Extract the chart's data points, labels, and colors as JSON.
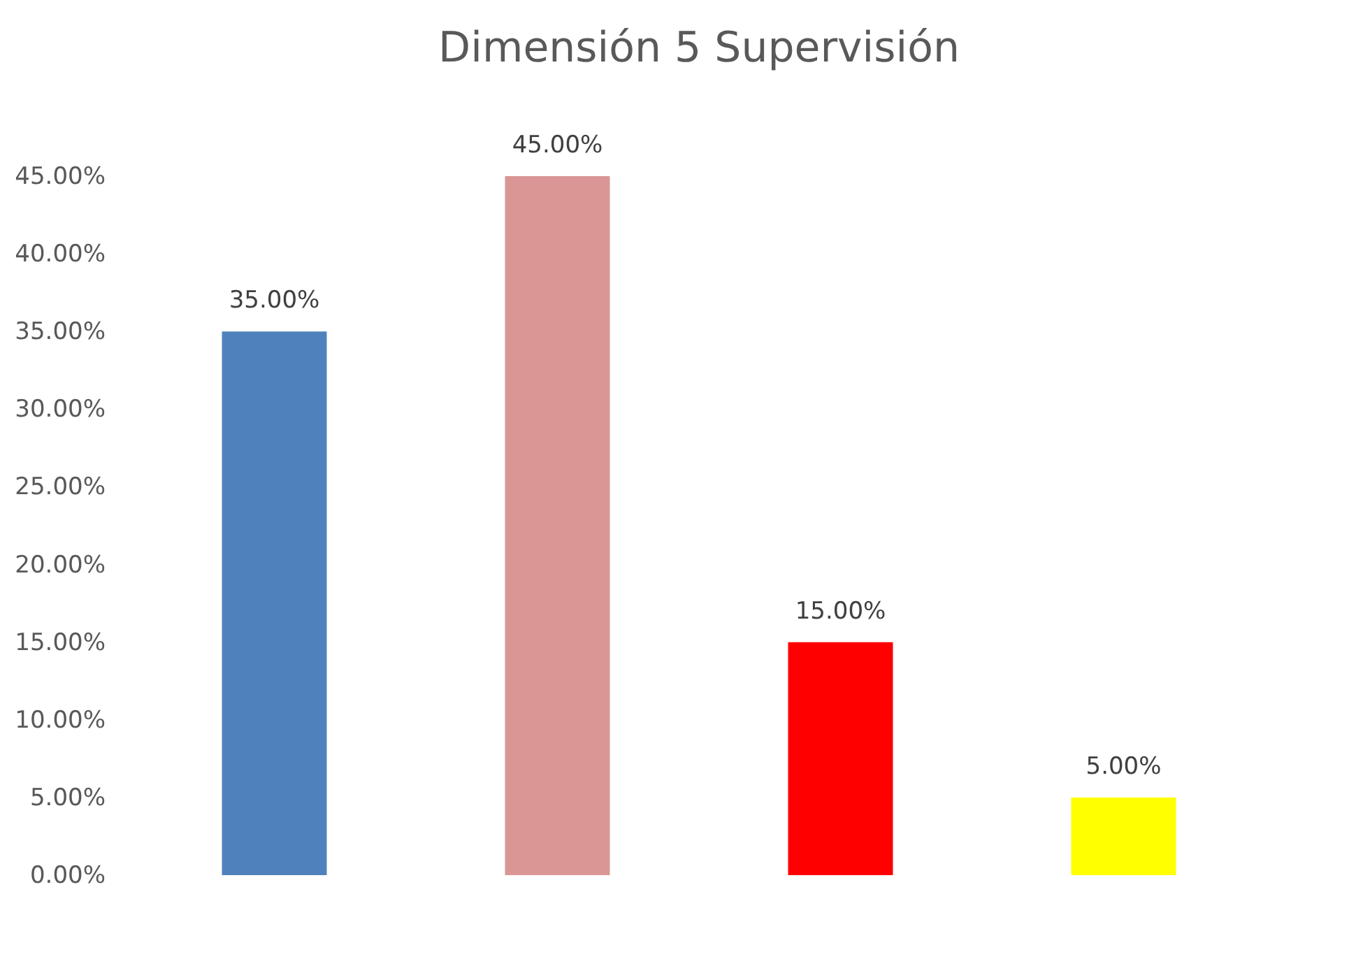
{
  "chart_data": {
    "type": "bar",
    "title": "Dimensión 5 Supervisión",
    "categories": [
      null,
      null,
      null,
      null
    ],
    "values": [
      35,
      45,
      15,
      5
    ],
    "colors": [
      "#4f81bd",
      "#d99694",
      "#ff0000",
      "#ffff00"
    ],
    "value_labels": [
      "35.00%",
      "45.00%",
      "15.00%",
      "5.00%"
    ],
    "ylim": [
      0,
      45
    ],
    "yticks": [
      {
        "value": 0,
        "label": "0.00%"
      },
      {
        "value": 5,
        "label": "5.00%"
      },
      {
        "value": 10,
        "label": "10.00%"
      },
      {
        "value": 15,
        "label": "15.00%"
      },
      {
        "value": 20,
        "label": "20.00%"
      },
      {
        "value": 25,
        "label": "25.00%"
      },
      {
        "value": 30,
        "label": "30.00%"
      },
      {
        "value": 35,
        "label": "35.00%"
      },
      {
        "value": 40,
        "label": "40.00%"
      },
      {
        "value": 45,
        "label": "45.00%"
      }
    ],
    "tick_labels": "y",
    "grid": false
  }
}
